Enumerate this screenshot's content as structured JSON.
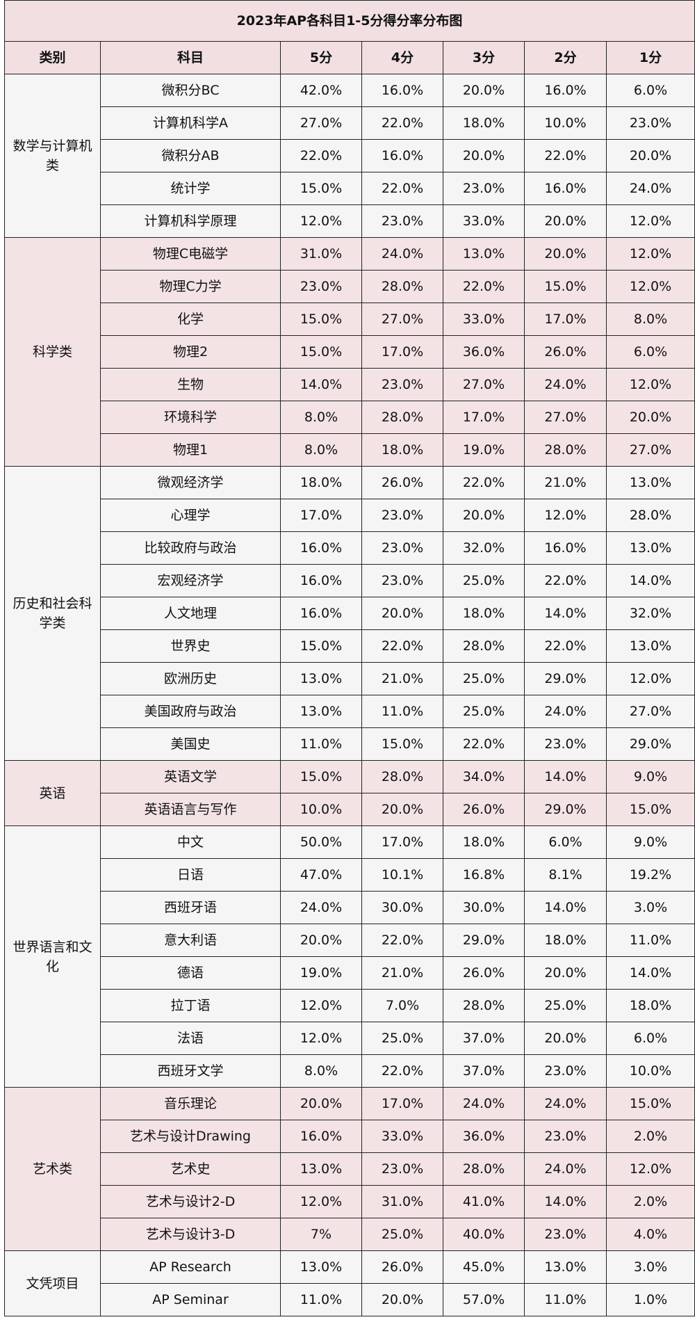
{
  "title": "2023年AP各科目1-5分得分率分布图",
  "headers": [
    "类别",
    "科目",
    "5分",
    "4分",
    "3分",
    "2分",
    "1分"
  ],
  "colors": {
    "pink_band": "#f4e3e5",
    "light_band": "#f5f5f5",
    "header_bg": "#f1dfe1",
    "border": "#222222"
  },
  "groups": [
    {
      "category": "数学与计算机类",
      "band": "light",
      "rows": [
        {
          "subject": "微积分BC",
          "s5": "42.0%",
          "s4": "16.0%",
          "s3": "20.0%",
          "s2": "16.0%",
          "s1": "6.0%"
        },
        {
          "subject": "计算机科学A",
          "s5": "27.0%",
          "s4": "22.0%",
          "s3": "18.0%",
          "s2": "10.0%",
          "s1": "23.0%"
        },
        {
          "subject": "微积分AB",
          "s5": "22.0%",
          "s4": "16.0%",
          "s3": "20.0%",
          "s2": "22.0%",
          "s1": "20.0%"
        },
        {
          "subject": "统计学",
          "s5": "15.0%",
          "s4": "22.0%",
          "s3": "23.0%",
          "s2": "16.0%",
          "s1": "24.0%"
        },
        {
          "subject": "计算机科学原理",
          "s5": "12.0%",
          "s4": "23.0%",
          "s3": "33.0%",
          "s2": "20.0%",
          "s1": "12.0%"
        }
      ]
    },
    {
      "category": "科学类",
      "band": "pink",
      "rows": [
        {
          "subject": "物理C电磁学",
          "s5": "31.0%",
          "s4": "24.0%",
          "s3": "13.0%",
          "s2": "20.0%",
          "s1": "12.0%"
        },
        {
          "subject": "物理C力学",
          "s5": "23.0%",
          "s4": "28.0%",
          "s3": "22.0%",
          "s2": "15.0%",
          "s1": "12.0%"
        },
        {
          "subject": "化学",
          "s5": "15.0%",
          "s4": "27.0%",
          "s3": "33.0%",
          "s2": "17.0%",
          "s1": "8.0%"
        },
        {
          "subject": "物理2",
          "s5": "15.0%",
          "s4": "17.0%",
          "s3": "36.0%",
          "s2": "26.0%",
          "s1": "6.0%"
        },
        {
          "subject": "生物",
          "s5": "14.0%",
          "s4": "23.0%",
          "s3": "27.0%",
          "s2": "24.0%",
          "s1": "12.0%"
        },
        {
          "subject": "环境科学",
          "s5": "8.0%",
          "s4": "28.0%",
          "s3": "17.0%",
          "s2": "27.0%",
          "s1": "20.0%"
        },
        {
          "subject": "物理1",
          "s5": "8.0%",
          "s4": "18.0%",
          "s3": "19.0%",
          "s2": "28.0%",
          "s1": "27.0%"
        }
      ]
    },
    {
      "category": "历史和社会科学类",
      "band": "light",
      "rows": [
        {
          "subject": "微观经济学",
          "s5": "18.0%",
          "s4": "26.0%",
          "s3": "22.0%",
          "s2": "21.0%",
          "s1": "13.0%"
        },
        {
          "subject": "心理学",
          "s5": "17.0%",
          "s4": "23.0%",
          "s3": "20.0%",
          "s2": "12.0%",
          "s1": "28.0%"
        },
        {
          "subject": "比较政府与政治",
          "s5": "16.0%",
          "s4": "23.0%",
          "s3": "32.0%",
          "s2": "16.0%",
          "s1": "13.0%"
        },
        {
          "subject": "宏观经济学",
          "s5": "16.0%",
          "s4": "23.0%",
          "s3": "25.0%",
          "s2": "22.0%",
          "s1": "14.0%"
        },
        {
          "subject": "人文地理",
          "s5": "16.0%",
          "s4": "20.0%",
          "s3": "18.0%",
          "s2": "14.0%",
          "s1": "32.0%"
        },
        {
          "subject": "世界史",
          "s5": "15.0%",
          "s4": "22.0%",
          "s3": "28.0%",
          "s2": "22.0%",
          "s1": "13.0%"
        },
        {
          "subject": "欧洲历史",
          "s5": "13.0%",
          "s4": "21.0%",
          "s3": "25.0%",
          "s2": "29.0%",
          "s1": "12.0%"
        },
        {
          "subject": "美国政府与政治",
          "s5": "13.0%",
          "s4": "11.0%",
          "s3": "25.0%",
          "s2": "24.0%",
          "s1": "27.0%"
        },
        {
          "subject": "美国史",
          "s5": "11.0%",
          "s4": "15.0%",
          "s3": "22.0%",
          "s2": "23.0%",
          "s1": "29.0%"
        }
      ]
    },
    {
      "category": "英语",
      "band": "pink",
      "rows": [
        {
          "subject": "英语文学",
          "s5": "15.0%",
          "s4": "28.0%",
          "s3": "34.0%",
          "s2": "14.0%",
          "s1": "9.0%"
        },
        {
          "subject": "英语语言与写作",
          "s5": "10.0%",
          "s4": "20.0%",
          "s3": "26.0%",
          "s2": "29.0%",
          "s1": "15.0%"
        }
      ]
    },
    {
      "category": "世界语言和文化",
      "band": "light",
      "rows": [
        {
          "subject": "中文",
          "s5": "50.0%",
          "s4": "17.0%",
          "s3": "18.0%",
          "s2": "6.0%",
          "s1": "9.0%"
        },
        {
          "subject": "日语",
          "s5": "47.0%",
          "s4": "10.1%",
          "s3": "16.8%",
          "s2": "8.1%",
          "s1": "19.2%"
        },
        {
          "subject": "西班牙语",
          "s5": "24.0%",
          "s4": "30.0%",
          "s3": "30.0%",
          "s2": "14.0%",
          "s1": "3.0%"
        },
        {
          "subject": "意大利语",
          "s5": "20.0%",
          "s4": "22.0%",
          "s3": "29.0%",
          "s2": "18.0%",
          "s1": "11.0%"
        },
        {
          "subject": "德语",
          "s5": "19.0%",
          "s4": "21.0%",
          "s3": "26.0%",
          "s2": "20.0%",
          "s1": "14.0%"
        },
        {
          "subject": "拉丁语",
          "s5": "12.0%",
          "s4": "7.0%",
          "s3": "28.0%",
          "s2": "25.0%",
          "s1": "18.0%"
        },
        {
          "subject": "法语",
          "s5": "12.0%",
          "s4": "25.0%",
          "s3": "37.0%",
          "s2": "20.0%",
          "s1": "6.0%"
        },
        {
          "subject": "西班牙文学",
          "s5": "8.0%",
          "s4": "22.0%",
          "s3": "37.0%",
          "s2": "23.0%",
          "s1": "10.0%"
        }
      ]
    },
    {
      "category": "艺术类",
      "band": "pink",
      "rows": [
        {
          "subject": "音乐理论",
          "s5": "20.0%",
          "s4": "17.0%",
          "s3": "24.0%",
          "s2": "24.0%",
          "s1": "15.0%"
        },
        {
          "subject": "艺术与设计Drawing",
          "s5": "16.0%",
          "s4": "33.0%",
          "s3": "36.0%",
          "s2": "23.0%",
          "s1": "2.0%"
        },
        {
          "subject": "艺术史",
          "s5": "13.0%",
          "s4": "23.0%",
          "s3": "28.0%",
          "s2": "24.0%",
          "s1": "12.0%"
        },
        {
          "subject": "艺术与设计2-D",
          "s5": "12.0%",
          "s4": "31.0%",
          "s3": "41.0%",
          "s2": "14.0%",
          "s1": "2.0%"
        },
        {
          "subject": "艺术与设计3-D",
          "s5": "7%",
          "s4": "25.0%",
          "s3": "40.0%",
          "s2": "23.0%",
          "s1": "4.0%"
        }
      ]
    },
    {
      "category": "文凭项目",
      "band": "light",
      "rows": [
        {
          "subject": "AP Research",
          "s5": "13.0%",
          "s4": "26.0%",
          "s3": "45.0%",
          "s2": "13.0%",
          "s1": "3.0%"
        },
        {
          "subject": "AP Seminar",
          "s5": "11.0%",
          "s4": "20.0%",
          "s3": "57.0%",
          "s2": "11.0%",
          "s1": "1.0%"
        }
      ]
    }
  ]
}
